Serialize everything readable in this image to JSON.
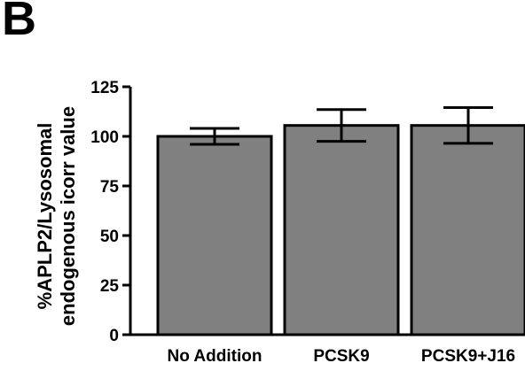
{
  "panel_label": "B",
  "chart_data": {
    "type": "bar",
    "categories": [
      "No Addition",
      "PCSK9",
      "PCSK9+J16"
    ],
    "values": [
      100,
      105.5,
      105.5
    ],
    "error": [
      4,
      8,
      9
    ],
    "ylabel_lines": [
      "%APLP2/Lysosomal",
      "endogenous icorr value"
    ],
    "xlabel": "",
    "ylim": [
      0,
      125
    ],
    "yticks": [
      0,
      25,
      50,
      75,
      100,
      125
    ],
    "grid": false,
    "bar_color": "#808080",
    "edge_color": "#000000"
  }
}
